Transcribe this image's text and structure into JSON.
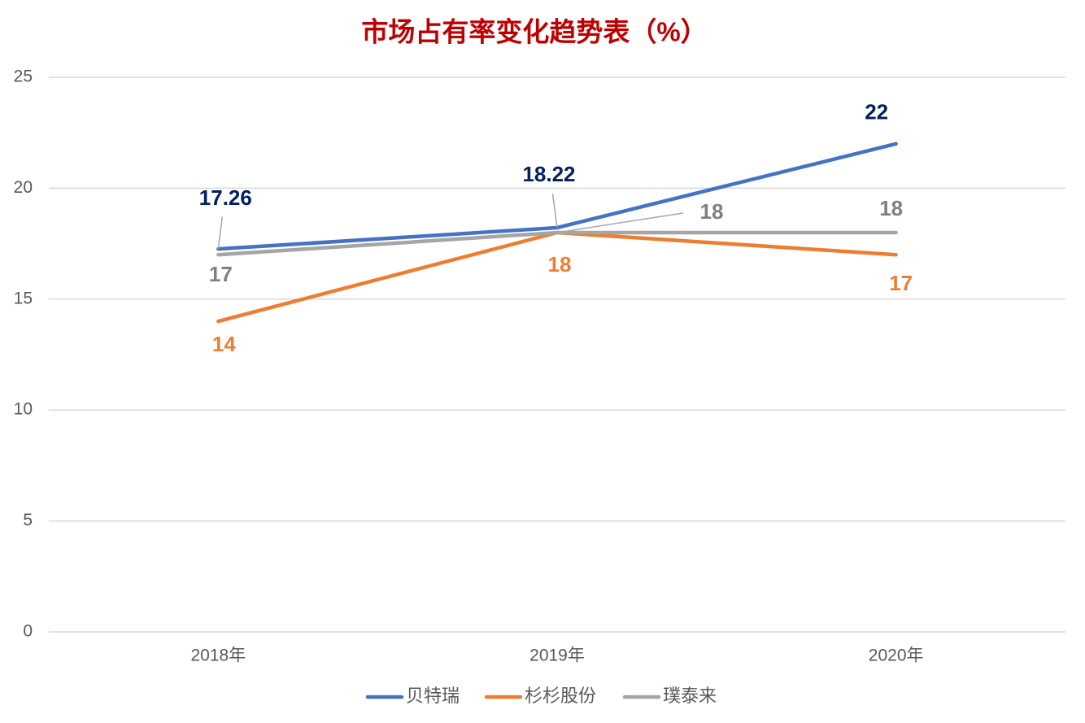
{
  "chart_data": {
    "type": "line",
    "title": "市场占有率变化趋势表（%）",
    "categories": [
      "2018年",
      "2019年",
      "2020年"
    ],
    "series": [
      {
        "name": "贝特瑞",
        "color": "#4472c4",
        "label_color": "#002060",
        "values": [
          17.26,
          18.22,
          22
        ]
      },
      {
        "name": "杉杉股份",
        "color": "#ed7d31",
        "label_color": "#ed7d31",
        "values": [
          14,
          18,
          17
        ]
      },
      {
        "name": "璞泰来",
        "color": "#a5a5a5",
        "label_color": "#7f7f7f",
        "values": [
          17,
          18,
          18
        ]
      }
    ],
    "ylim": [
      0,
      25
    ],
    "yticks": [
      0,
      5,
      10,
      15,
      20,
      25
    ],
    "grid": true,
    "title_color": "#c00000",
    "legend": "bottom"
  }
}
